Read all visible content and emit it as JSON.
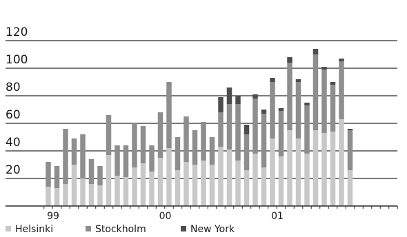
{
  "chart_data": {
    "type": "bar",
    "stacked": true,
    "title": "",
    "xlabel": "",
    "ylabel": "",
    "ylim": [
      0,
      120
    ],
    "yticks": [
      20,
      40,
      60,
      80,
      100,
      120
    ],
    "y_tick_labels": [
      "20",
      "40",
      "60",
      "80",
      "100",
      "120"
    ],
    "grid": true,
    "legend_position": "bottom",
    "x_tick_labels": [
      {
        "label": "99",
        "index": 1.5
      },
      {
        "label": "00",
        "index": 14.5
      },
      {
        "label": "01",
        "index": 27.5
      }
    ],
    "categories": [
      "1",
      "2",
      "3",
      "4",
      "5",
      "6",
      "7",
      "8",
      "9",
      "10",
      "11",
      "12",
      "13",
      "14",
      "15",
      "16",
      "17",
      "18",
      "19",
      "20",
      "21",
      "22",
      "23",
      "24",
      "25",
      "26",
      "27",
      "28",
      "29",
      "30",
      "31",
      "32",
      "33",
      "34",
      "35",
      "36",
      "37",
      "38",
      "39",
      "40",
      "41"
    ],
    "series": [
      {
        "name": "Helsinki",
        "color": "#c8c8c8",
        "values": [
          14,
          13,
          16,
          30,
          20,
          16,
          15,
          37,
          22,
          21,
          28,
          31,
          25,
          35,
          42,
          26,
          32,
          30,
          33,
          30,
          43,
          41,
          33,
          26,
          38,
          28,
          49,
          36,
          55,
          49,
          38,
          55,
          53,
          54,
          63,
          26,
          0,
          0,
          0,
          0,
          0
        ]
      },
      {
        "name": "Stockholm",
        "color": "#8e8e8e",
        "values": [
          18,
          16,
          40,
          19,
          32,
          18,
          14,
          29,
          22,
          23,
          32,
          27,
          19,
          33,
          48,
          24,
          33,
          25,
          28,
          20,
          25,
          33,
          41,
          26,
          40,
          39,
          41,
          33,
          49,
          41,
          35,
          55,
          46,
          34,
          42,
          29,
          0,
          0,
          0,
          0,
          0
        ]
      },
      {
        "name": "New York",
        "color": "#4d4d4d",
        "values": [
          0,
          0,
          0,
          0,
          0,
          0,
          0,
          0,
          0,
          0,
          0,
          0,
          0,
          0,
          0,
          0,
          0,
          0,
          0,
          0,
          11,
          12,
          6,
          7,
          3,
          3,
          3,
          2,
          4,
          2,
          2,
          4,
          2,
          2,
          2,
          1,
          0,
          0,
          0,
          0,
          0
        ]
      }
    ]
  },
  "legend": {
    "items": [
      {
        "label": "Helsinki",
        "color": "#c8c8c8"
      },
      {
        "label": "Stockholm",
        "color": "#8e8e8e"
      },
      {
        "label": "New York",
        "color": "#4d4d4d"
      }
    ]
  }
}
